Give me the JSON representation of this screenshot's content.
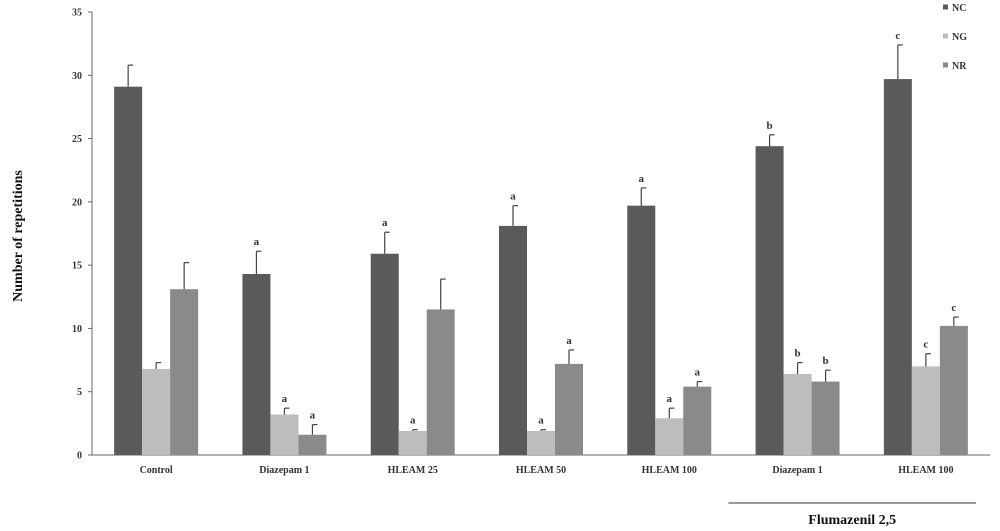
{
  "chart_data": {
    "type": "bar",
    "ylabel": "Number of repetitions",
    "ylim": [
      0,
      35
    ],
    "yticks": [
      "0",
      "5",
      "10",
      "15",
      "20",
      "25",
      "30",
      "35"
    ],
    "categories": [
      "Control",
      "Diazepam 1",
      "HLEAM 25",
      "HLEAM 50",
      "HLEAM 100",
      "Diazepam 1",
      "HLEAM 100"
    ],
    "series": [
      {
        "name": "NC",
        "color": "#5a5a5a",
        "values": [
          29.1,
          14.3,
          15.9,
          18.1,
          19.7,
          24.4,
          29.7
        ],
        "errors": [
          1.7,
          1.8,
          1.7,
          1.6,
          1.4,
          0.9,
          2.7
        ],
        "labels": [
          "",
          "a",
          "a",
          "a",
          "a",
          "b",
          "c"
        ]
      },
      {
        "name": "NG",
        "color": "#bdbdbd",
        "values": [
          6.8,
          3.2,
          1.9,
          1.9,
          2.9,
          6.4,
          7.0
        ],
        "errors": [
          0.5,
          0.5,
          0.1,
          0.1,
          0.8,
          0.9,
          1.0
        ],
        "labels": [
          "",
          "a",
          "a",
          "a",
          "a",
          "b",
          "c"
        ]
      },
      {
        "name": "NR",
        "color": "#8a8a8a",
        "values": [
          13.1,
          1.6,
          11.5,
          7.2,
          5.4,
          5.8,
          10.2
        ],
        "errors": [
          2.1,
          0.8,
          2.4,
          1.1,
          0.4,
          0.9,
          0.7
        ],
        "labels": [
          "",
          "a",
          "",
          "a",
          "a",
          "b",
          "c"
        ]
      }
    ],
    "group_label": "Flumazenil 2,5",
    "legend_position": "top-right"
  }
}
